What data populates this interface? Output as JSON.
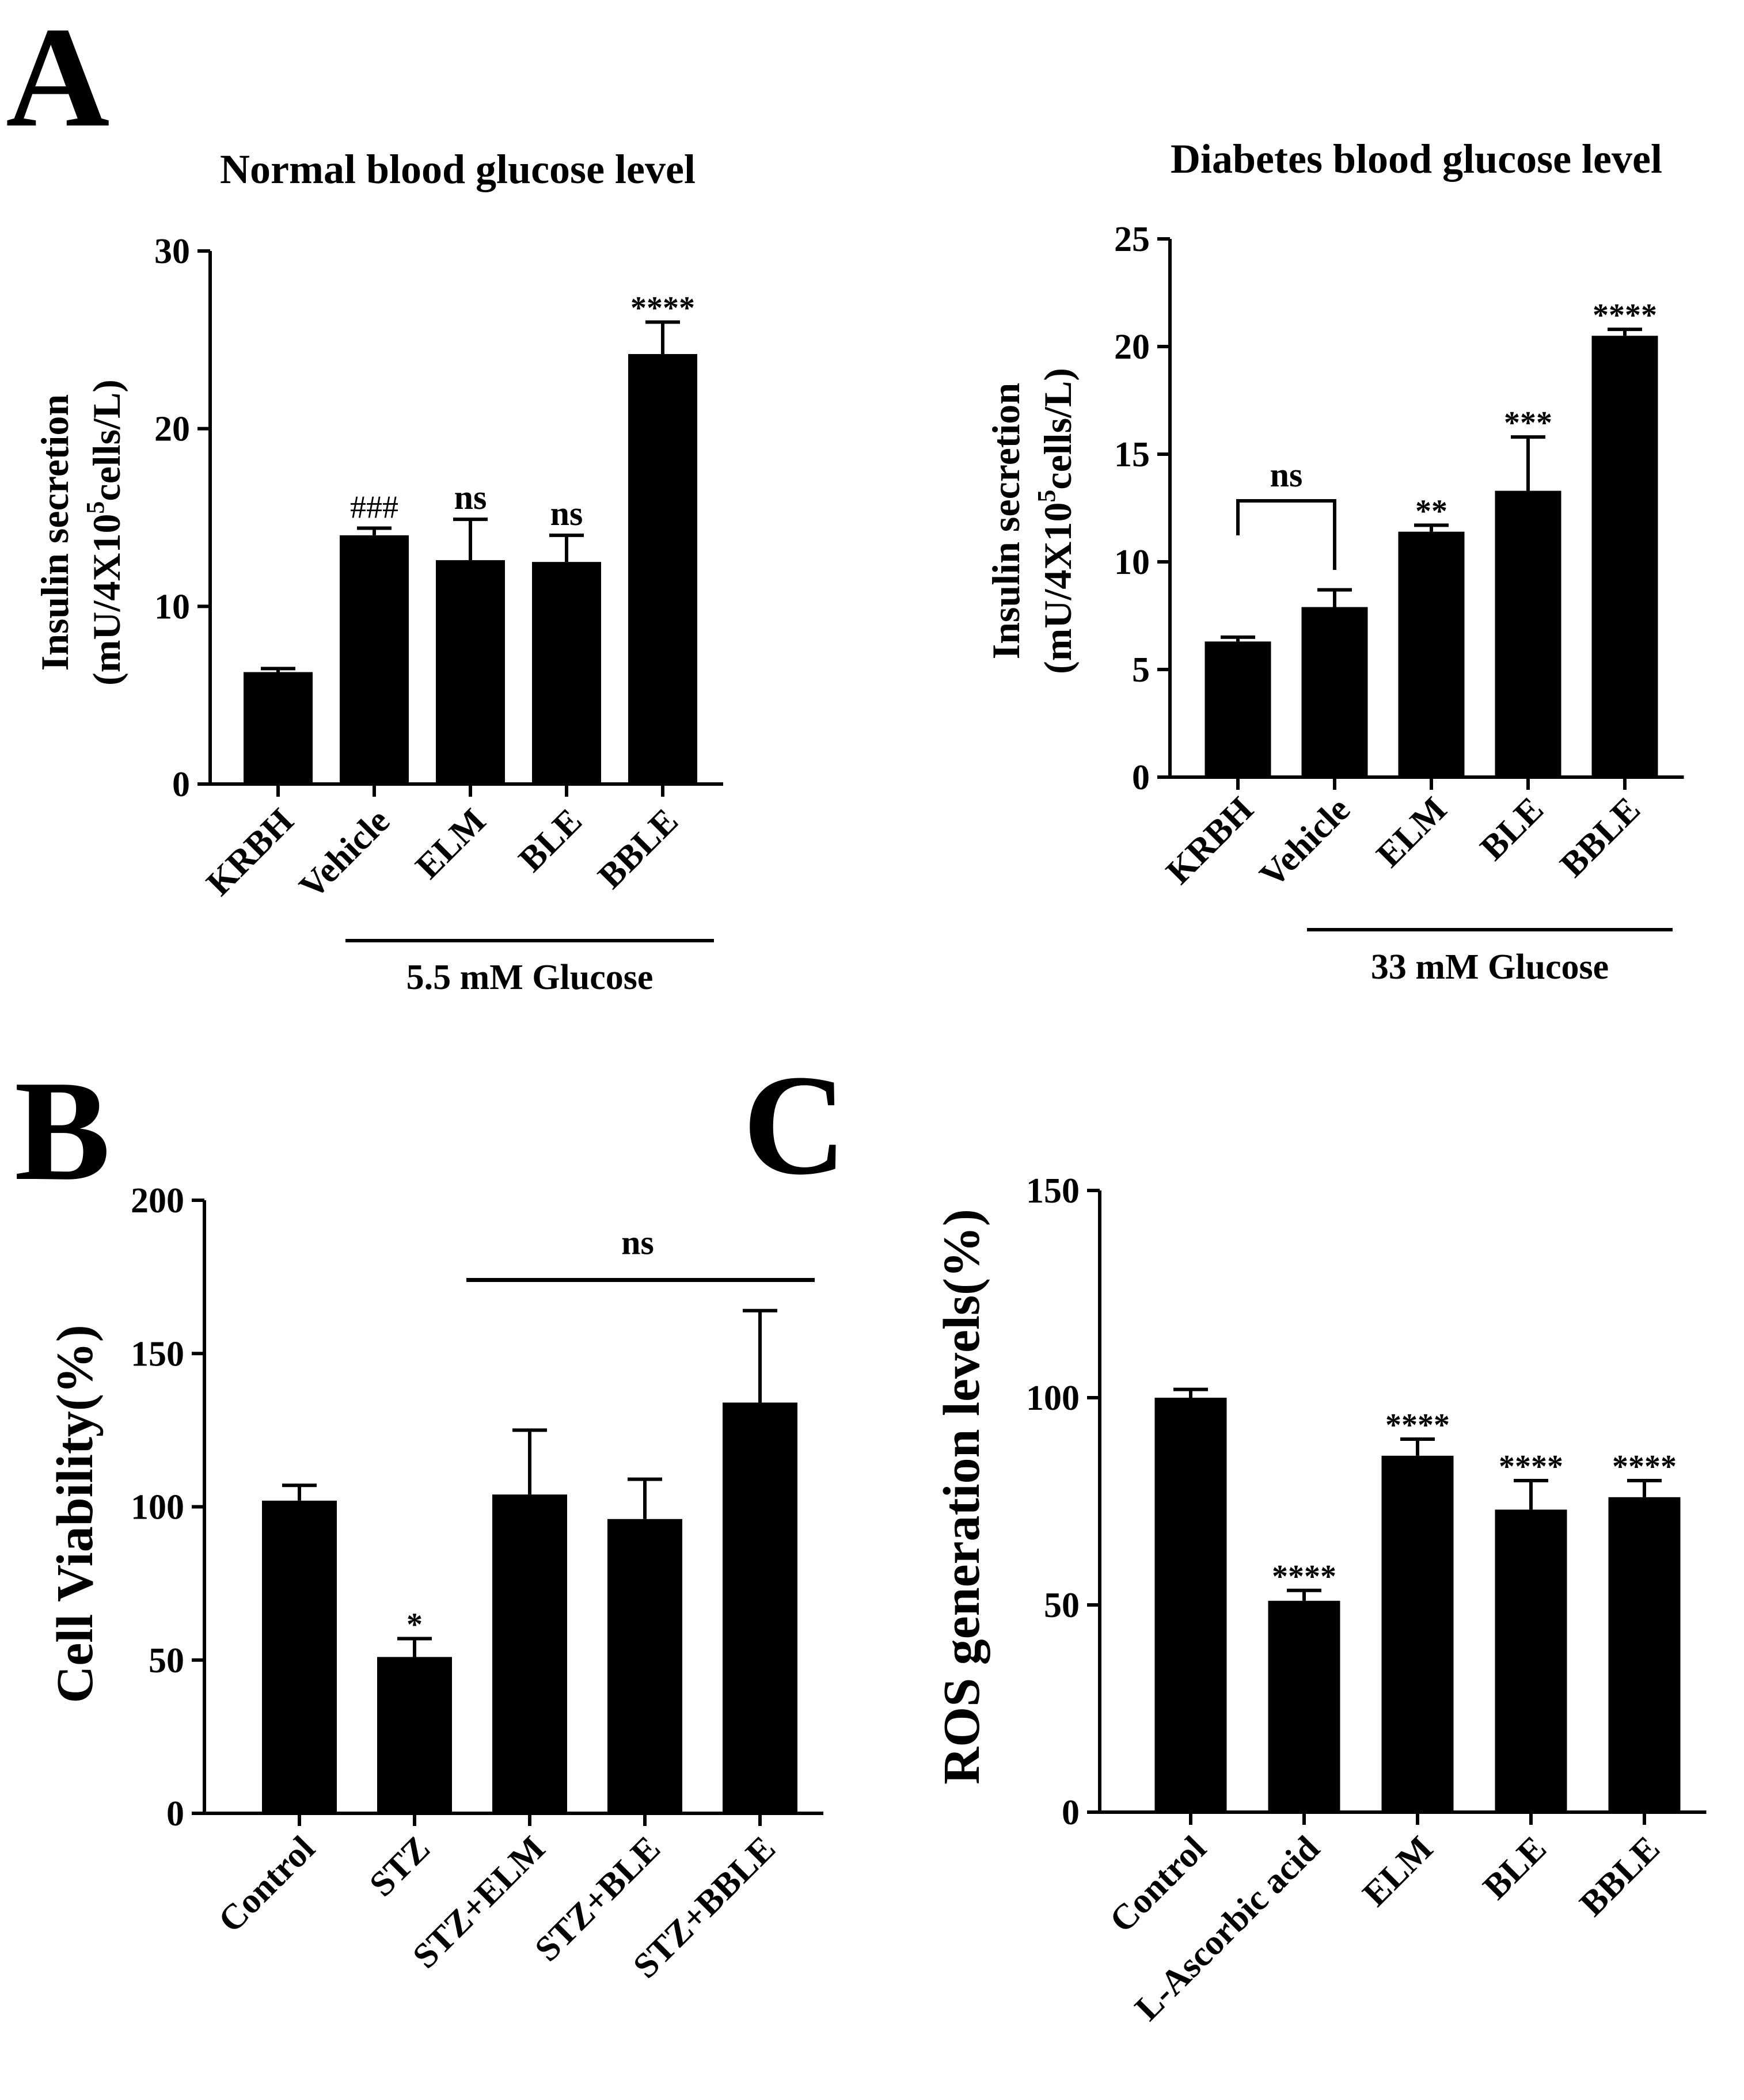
{
  "panel_labels": [
    "A",
    "B",
    "C"
  ],
  "chart_data": [
    {
      "id": "a1",
      "type": "bar",
      "title": "Normal blood glucose level",
      "ylabel_lines": [
        "Insulin secretion",
        "(mU/4X10",
        "5",
        "cells/L)"
      ],
      "ylim": [
        0,
        30
      ],
      "yticks": [
        0,
        10,
        20,
        30
      ],
      "categories": [
        "KRBH",
        "Vehicle",
        "ELM",
        "BLE",
        "BBLE"
      ],
      "values": [
        6.3,
        14.0,
        12.6,
        12.5,
        24.2
      ],
      "errors": [
        0.2,
        0.4,
        2.3,
        1.5,
        1.8
      ],
      "significance": [
        "",
        "###",
        "ns",
        "ns",
        "****"
      ],
      "group_label": "5.5 mM Glucose",
      "group_range": [
        1,
        4
      ]
    },
    {
      "id": "a2",
      "type": "bar",
      "title": "Diabetes blood glucose level",
      "ylabel_lines": [
        "Insulin secretion",
        "(mU/4X10",
        "5",
        "cells/L)"
      ],
      "ylim": [
        0,
        25
      ],
      "yticks": [
        0,
        5,
        10,
        15,
        20,
        25
      ],
      "categories": [
        "KRBH",
        "Vehicle",
        "ELM",
        "BLE",
        "BBLE"
      ],
      "values": [
        6.3,
        7.9,
        11.4,
        13.3,
        20.5
      ],
      "errors": [
        0.2,
        0.8,
        0.3,
        2.5,
        0.3
      ],
      "significance": [
        "",
        "",
        "**",
        "***",
        "****"
      ],
      "bracket": {
        "from": 0,
        "to": 1,
        "label": "ns"
      },
      "group_label": "33 mM Glucose",
      "group_range": [
        1,
        4
      ]
    },
    {
      "id": "b",
      "type": "bar",
      "title": "",
      "ylabel": "Cell Viability(%)",
      "ylim": [
        0,
        200
      ],
      "yticks": [
        0,
        50,
        100,
        150,
        200
      ],
      "categories": [
        "Control",
        "STZ",
        "STZ+ELM",
        "STZ+BLE",
        "STZ+BBLE"
      ],
      "values": [
        102,
        51,
        104,
        96,
        134
      ],
      "errors": [
        5,
        6,
        21,
        13,
        30
      ],
      "significance": [
        "",
        "*",
        "",
        "",
        ""
      ],
      "group_line": {
        "from": 2,
        "to": 4,
        "label": "ns"
      }
    },
    {
      "id": "c",
      "type": "bar",
      "title": "",
      "ylabel": "ROS generation levels(%)",
      "ylim": [
        0,
        150
      ],
      "yticks": [
        0,
        50,
        100,
        150
      ],
      "categories": [
        "Control",
        "L-Ascorbic acid",
        "ELM",
        "BLE",
        "BBLE"
      ],
      "values": [
        100,
        51,
        86,
        73,
        76
      ],
      "errors": [
        2,
        2.5,
        4,
        7,
        4
      ],
      "significance": [
        "",
        "****",
        "****",
        "****",
        "****"
      ]
    }
  ]
}
